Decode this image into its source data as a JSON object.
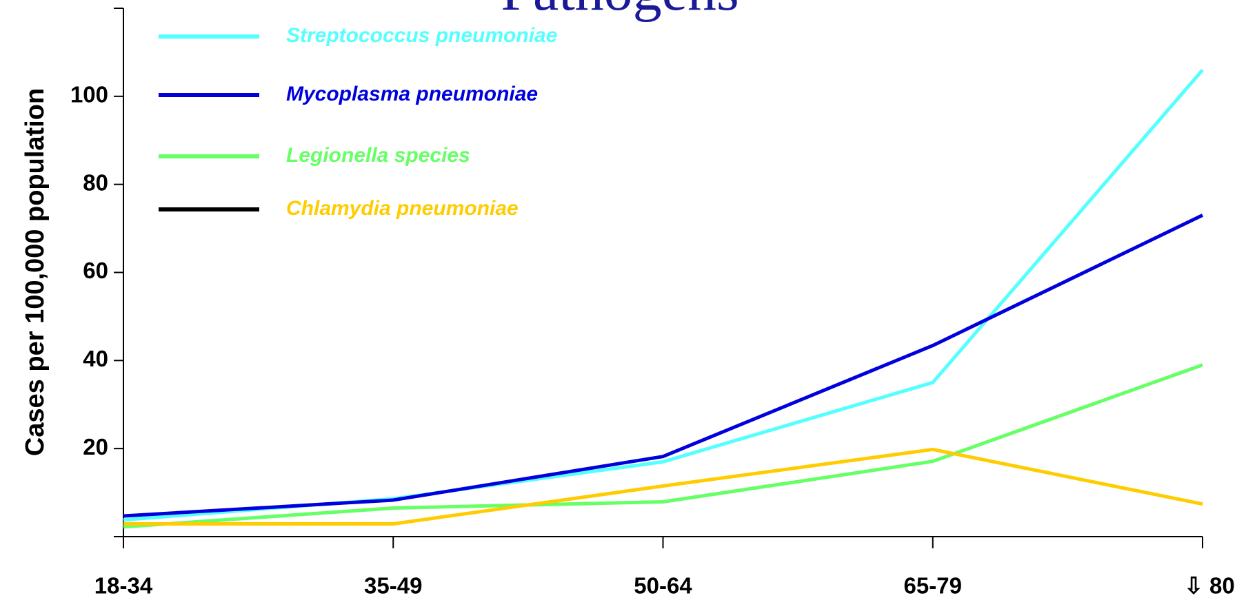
{
  "chart_data": {
    "type": "line",
    "title": "Pathogens",
    "ylabel": "Cases per 100,000 population",
    "categories": [
      "18-34",
      "35-49",
      "50-64",
      "65-79",
      "⇩ 80"
    ],
    "series": [
      {
        "name": "Streptococcus pneumoniae",
        "color": "#55ffff",
        "legend_color": "#55ffff",
        "values": [
          3.8,
          8.6,
          17,
          35,
          106
        ]
      },
      {
        "name": "Mycoplasma pneumoniae",
        "color": "#0000dd",
        "legend_color": "#0000dd",
        "values": [
          4.7,
          8.3,
          18.2,
          43.4,
          73
        ]
      },
      {
        "name": "Legionella species",
        "color": "#66ff66",
        "legend_color": "#66ff66",
        "values": [
          2.2,
          6.5,
          7.9,
          17.1,
          39
        ]
      },
      {
        "name": "Chlamydia pneumoniae",
        "color": "#ffcc00",
        "legend_color": "#000000",
        "values": [
          2.9,
          2.9,
          11.5,
          19.8,
          7.4
        ]
      }
    ],
    "ylim": [
      0,
      120
    ],
    "yticks": [
      20,
      40,
      60,
      80,
      100
    ],
    "grid": false
  }
}
